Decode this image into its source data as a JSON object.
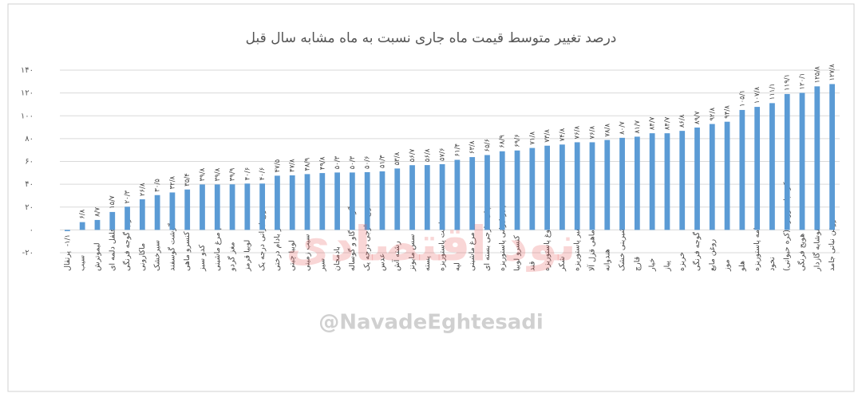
{
  "chart_data": {
    "type": "bar",
    "title": "درصد تغییر متوسط قیمت ماه جاری نسبت به ماه مشابه سال قبل",
    "watermark": "@NavadeEghtesadi",
    "watermark_text": "نود اقتصادی",
    "color": "#5b9bd5",
    "categories": [
      "پرتقال",
      "سیب",
      "لیموترش",
      "فلفل دلمه ای",
      "رب گوجه فرنگی",
      "ماکارونی",
      "سیرخشک",
      "گوشت گوسفند",
      "کنسرو ماهی",
      "کدو سبز",
      "تخم مرغ ماشینی",
      "مغز گردو",
      "لوبیا قرمز",
      "برنج ایرانی درجه یک",
      "مغز بادام درختی",
      "لوبیا چیتی",
      "سیب زمینی",
      "سیر",
      "بادمجان",
      "گوشت گاو و گوساله",
      "برنج خارجی درجه یک",
      "عدس",
      "رشته آش",
      "سس مایونز",
      "پسته",
      "ماست پاستوریزه",
      "لپه",
      "مرغ ماشینی",
      "چای خارجی بسته ای",
      "پنیر ایرانی پاستوریزه",
      "کنسرو لوبیا",
      "قند",
      "دوغ پاستوریزه",
      "شکر",
      "شیر پاستوریزه",
      "ماهی قزل آلا",
      "هندوانه",
      "شیرینی خشک",
      "قارچ",
      "خیار",
      "پیاز",
      "خربزه",
      "گوجه فرنگی",
      "روغن مایع",
      "موز",
      "هلو",
      "خامه پاستوریزه",
      "نخود",
      "کره پاستوریزه (کره حیوانی)",
      "هویج فرنگی",
      "نوشابه گازدار",
      "روغن نباتی جامد"
    ],
    "values": [
      -1.1,
      6.8,
      8.7,
      15.7,
      20.3,
      26.8,
      30.5,
      32.8,
      35.4,
      39.8,
      39.8,
      39.9,
      40.6,
      40.6,
      47.5,
      47.8,
      48.9,
      49.8,
      50.3,
      50.3,
      50.6,
      51.3,
      53.8,
      56.7,
      56.8,
      57.6,
      61.4,
      63.8,
      65.6,
      68.9,
      69.6,
      71.8,
      73.8,
      74.8,
      76.8,
      76.8,
      78.8,
      80.7,
      81.7,
      84.7,
      84.7,
      86.8,
      89.7,
      92.8,
      94.8,
      105.1,
      107.8,
      111.1,
      119.1,
      120.1,
      125.8,
      127.8
    ],
    "value_labels": [
      "-۱/۱",
      "۶/۸",
      "۸/۷",
      "۱۵/۷",
      "۲۰/۳",
      "۲۶/۸",
      "۳۰/۵",
      "۳۲/۸",
      "۳۵/۴",
      "۳۹/۸",
      "۳۹/۸",
      "۳۹/۹",
      "۴۰/۶",
      "۴۰/۶",
      "۴۷/۵",
      "۴۷/۸",
      "۴۸/۹",
      "۴۹/۸",
      "۵۰/۳",
      "۵۰/۳",
      "۵۰/۶",
      "۵۱/۳",
      "۵۳/۸",
      "۵۶/۷",
      "۵۶/۸",
      "۵۷/۶",
      "۶۱/۴",
      "۶۳/۸",
      "۶۵/۶",
      "۶۸/۹",
      "۶۹/۶",
      "۷۱/۸",
      "۷۳/۸",
      "۷۴/۸",
      "۷۶/۸",
      "۷۶/۸",
      "۷۸/۸",
      "۸۰/۷",
      "۸۱/۷",
      "۸۴/۷",
      "۸۴/۷",
      "۸۶/۸",
      "۸۹/۷",
      "۹۲/۸",
      "۹۴/۸",
      "۱۰۵/۱",
      "۱۰۷/۸",
      "۱۱۱/۱",
      "۱۱۹/۱",
      "۱۲۰/۱",
      "۱۲۵/۸",
      "۱۲۷/۸"
    ],
    "ylim": [
      -20,
      140
    ],
    "yticks": [
      {
        "value": -20,
        "label": "-۲۰"
      },
      {
        "value": 0,
        "label": "۰"
      },
      {
        "value": 20,
        "label": "۲۰"
      },
      {
        "value": 40,
        "label": "۴۰"
      },
      {
        "value": 60,
        "label": "۶۰"
      },
      {
        "value": 80,
        "label": "۸۰"
      },
      {
        "value": 100,
        "label": "۱۰۰"
      },
      {
        "value": 120,
        "label": "۱۲۰"
      },
      {
        "value": 140,
        "label": "۱۴۰"
      }
    ],
    "grid": true
  }
}
